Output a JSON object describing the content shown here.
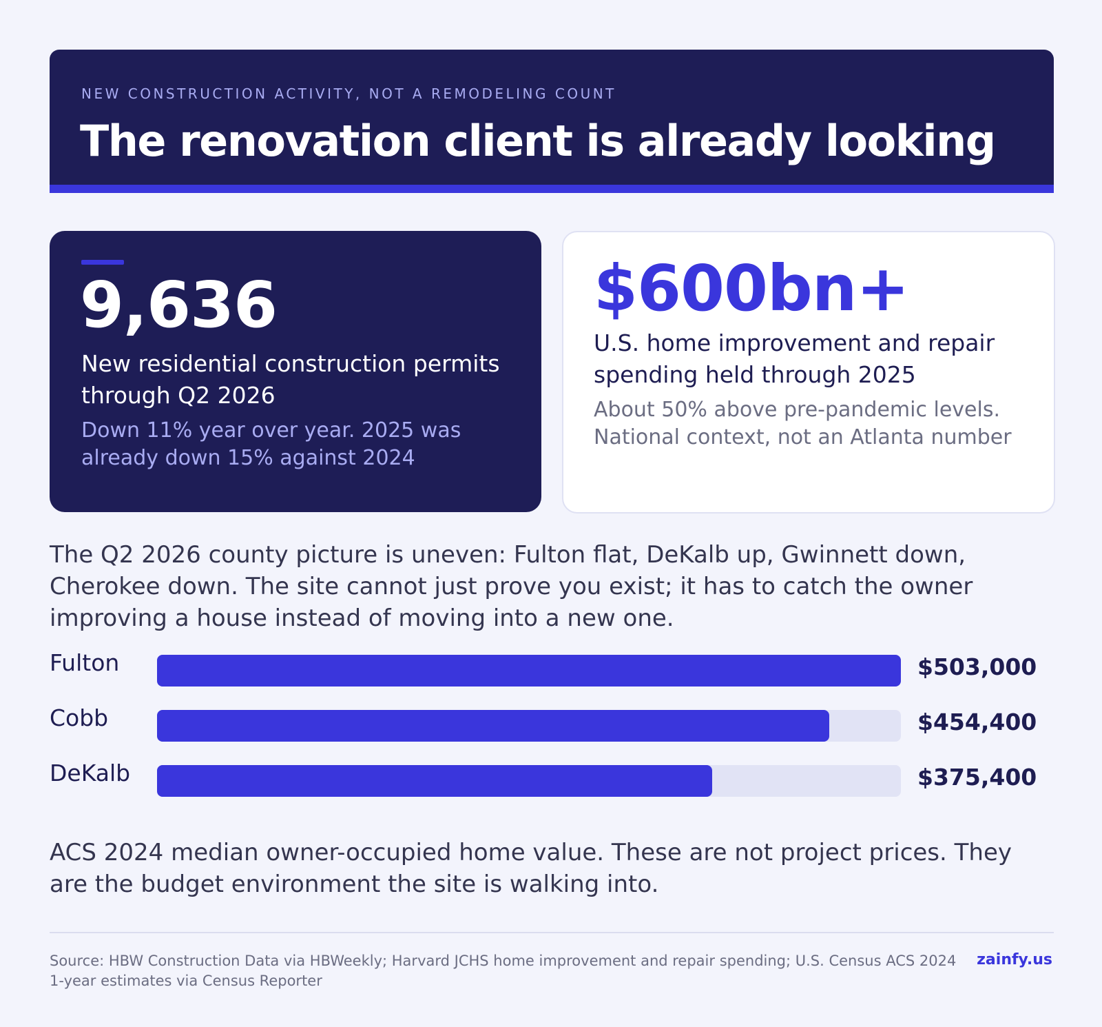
{
  "header": {
    "eyebrow": "NEW CONSTRUCTION ACTIVITY, NOT A REMODELING COUNT",
    "title": "The renovation client is already looking"
  },
  "stats": {
    "permits": {
      "value": "9,636",
      "label": "New residential construction permits through Q2 2026",
      "note": "Down 11% year over year. 2025 was already down 15% against 2024"
    },
    "spending": {
      "value": "$600bn+",
      "label": "U.S. home improvement and repair spending held through 2025",
      "note": "About 50% above pre-pandemic levels. National context, not an Atlanta number"
    }
  },
  "intro": "The Q2 2026 county picture is uneven: Fulton flat, DeKalb up, Gwinnett down, Cherokee down. The site cannot just prove you exist; it has to catch the owner improving a house instead of moving into a new one.",
  "chart_data": {
    "type": "bar",
    "orientation": "horizontal",
    "categories": [
      "Fulton",
      "Cobb",
      "DeKalb"
    ],
    "values": [
      503000,
      454400,
      375400
    ],
    "value_labels": [
      "$503,000",
      "$454,400",
      "$375,400"
    ],
    "xlim": [
      0,
      503000
    ],
    "colors": {
      "bar": "#3a36dc",
      "track": "#e1e3f5"
    }
  },
  "caption": "ACS 2024 median owner-occupied home value. These are not project prices. They are the budget environment the site is walking into.",
  "footer": {
    "source": "Source: HBW Construction Data via HBWeekly; Harvard JCHS home improvement and repair spending; U.S. Census ACS 2024 1-year estimates via Census Reporter",
    "brand": "zainfy.us"
  }
}
